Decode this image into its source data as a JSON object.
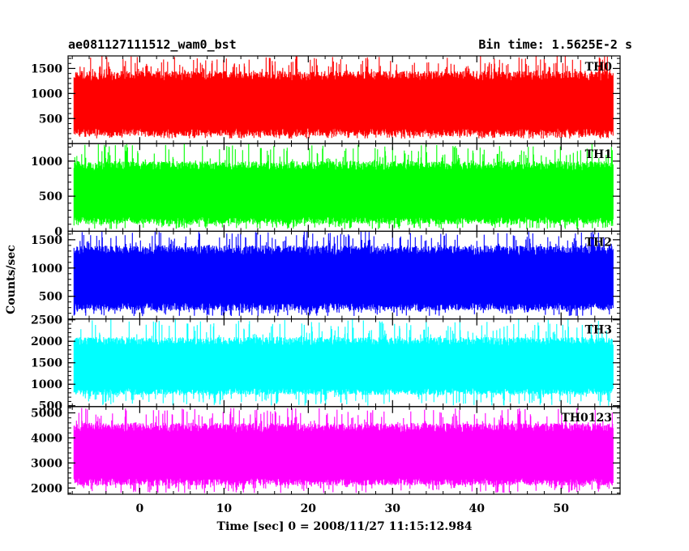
{
  "header": {
    "title": "ae081127111512_wam0_bst",
    "bin_time": "Bin time: 1.5625E-2 s"
  },
  "axes": {
    "xlabel": "Time [sec] 0 = 2008/11/27 11:15:12.984",
    "ylabel": "Counts/sec"
  },
  "chart_data": {
    "type": "line",
    "xlim": [
      -8.5,
      57
    ],
    "x_ticks": [
      0,
      10,
      20,
      30,
      40,
      50
    ],
    "x_tick_labels": [
      "0",
      "10",
      "20",
      "30",
      "40",
      "50"
    ],
    "data_x_range": [
      -7.8,
      56.2
    ],
    "bin_time_s": 0.015625,
    "panels": [
      {
        "name": "TH0",
        "color": "#ff0000",
        "ylim": [
          0,
          1750
        ],
        "y_ticks": [
          500,
          1000,
          1500
        ],
        "y_tick_labels": [
          "500",
          "1000",
          "1500"
        ],
        "typical_min": 150,
        "typical_max": 1450,
        "peak_min": 100,
        "peak_max": 1750
      },
      {
        "name": "TH1",
        "color": "#00ff00",
        "ylim": [
          0,
          1250
        ],
        "y_ticks": [
          0,
          500,
          1000
        ],
        "y_tick_labels": [
          "0",
          "500",
          "1000"
        ],
        "typical_min": 100,
        "typical_max": 1000,
        "peak_min": 30,
        "peak_max": 1250
      },
      {
        "name": "TH2",
        "color": "#0000ff",
        "ylim": [
          100,
          1650
        ],
        "y_ticks": [
          500,
          1000,
          1500
        ],
        "y_tick_labels": [
          "500",
          "1000",
          "1500"
        ],
        "typical_min": 250,
        "typical_max": 1400,
        "peak_min": 150,
        "peak_max": 1650
      },
      {
        "name": "TH3",
        "color": "#00ffff",
        "ylim": [
          480,
          2520
        ],
        "y_ticks": [
          500,
          1000,
          1500,
          2000,
          2500
        ],
        "y_tick_labels": [
          "500",
          "1000",
          "1500",
          "2000",
          "2500"
        ],
        "typical_min": 750,
        "typical_max": 2100,
        "peak_min": 500,
        "peak_max": 2520
      },
      {
        "name": "TH0123",
        "color": "#ff00ff",
        "ylim": [
          1750,
          5250
        ],
        "y_ticks": [
          2000,
          3000,
          4000,
          5000
        ],
        "y_tick_labels": [
          "2000",
          "3000",
          "4000",
          "5000"
        ],
        "typical_min": 2100,
        "typical_max": 4600,
        "peak_min": 1800,
        "peak_max": 5200
      }
    ]
  }
}
